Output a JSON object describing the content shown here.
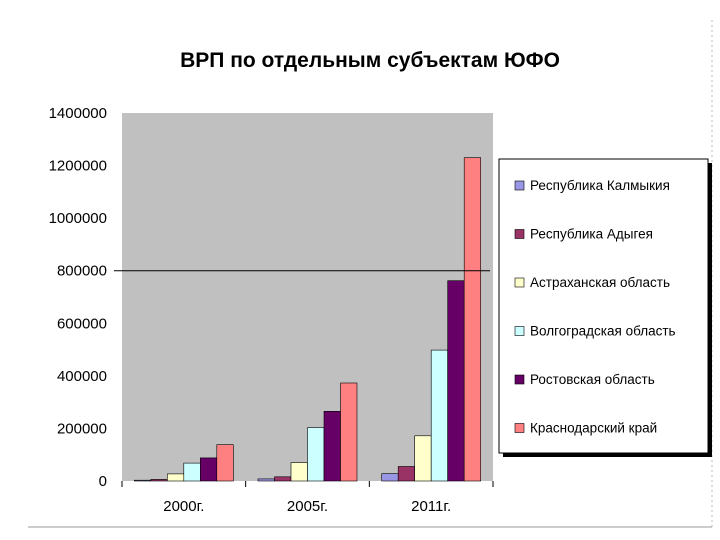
{
  "chart_data": {
    "type": "bar",
    "title": "ВРП по отдельным субъектам ЮФО",
    "xlabel": "",
    "ylabel": "",
    "categories": [
      "2000г.",
      "2005г.",
      "2011г."
    ],
    "ylim": [
      0,
      1400000
    ],
    "yticks": [
      "0",
      "200000",
      "400000",
      "600000",
      "800000",
      "1000000",
      "1200000",
      "1400000"
    ],
    "grid": false,
    "legend_position": "right",
    "series": [
      {
        "name": "Республика Калмыкия",
        "color": "#9a96e6",
        "values": [
          3000,
          8000,
          28000
        ]
      },
      {
        "name": "Республика Адыгея",
        "color": "#993366",
        "values": [
          6000,
          16000,
          55000
        ]
      },
      {
        "name": "Астраханская область",
        "color": "#ffffcc",
        "values": [
          27000,
          70000,
          172000
        ]
      },
      {
        "name": "Волгоградская область",
        "color": "#ccffff",
        "values": [
          68000,
          203000,
          498000
        ]
      },
      {
        "name": "Ростовская область",
        "color": "#660066",
        "values": [
          88000,
          265000,
          762000
        ]
      },
      {
        "name": "Краснодарский край",
        "color": "#ff8080",
        "values": [
          138000,
          373000,
          1230000
        ]
      }
    ],
    "plot_background": "#c0c0c0",
    "reference_line_value": 800000
  }
}
